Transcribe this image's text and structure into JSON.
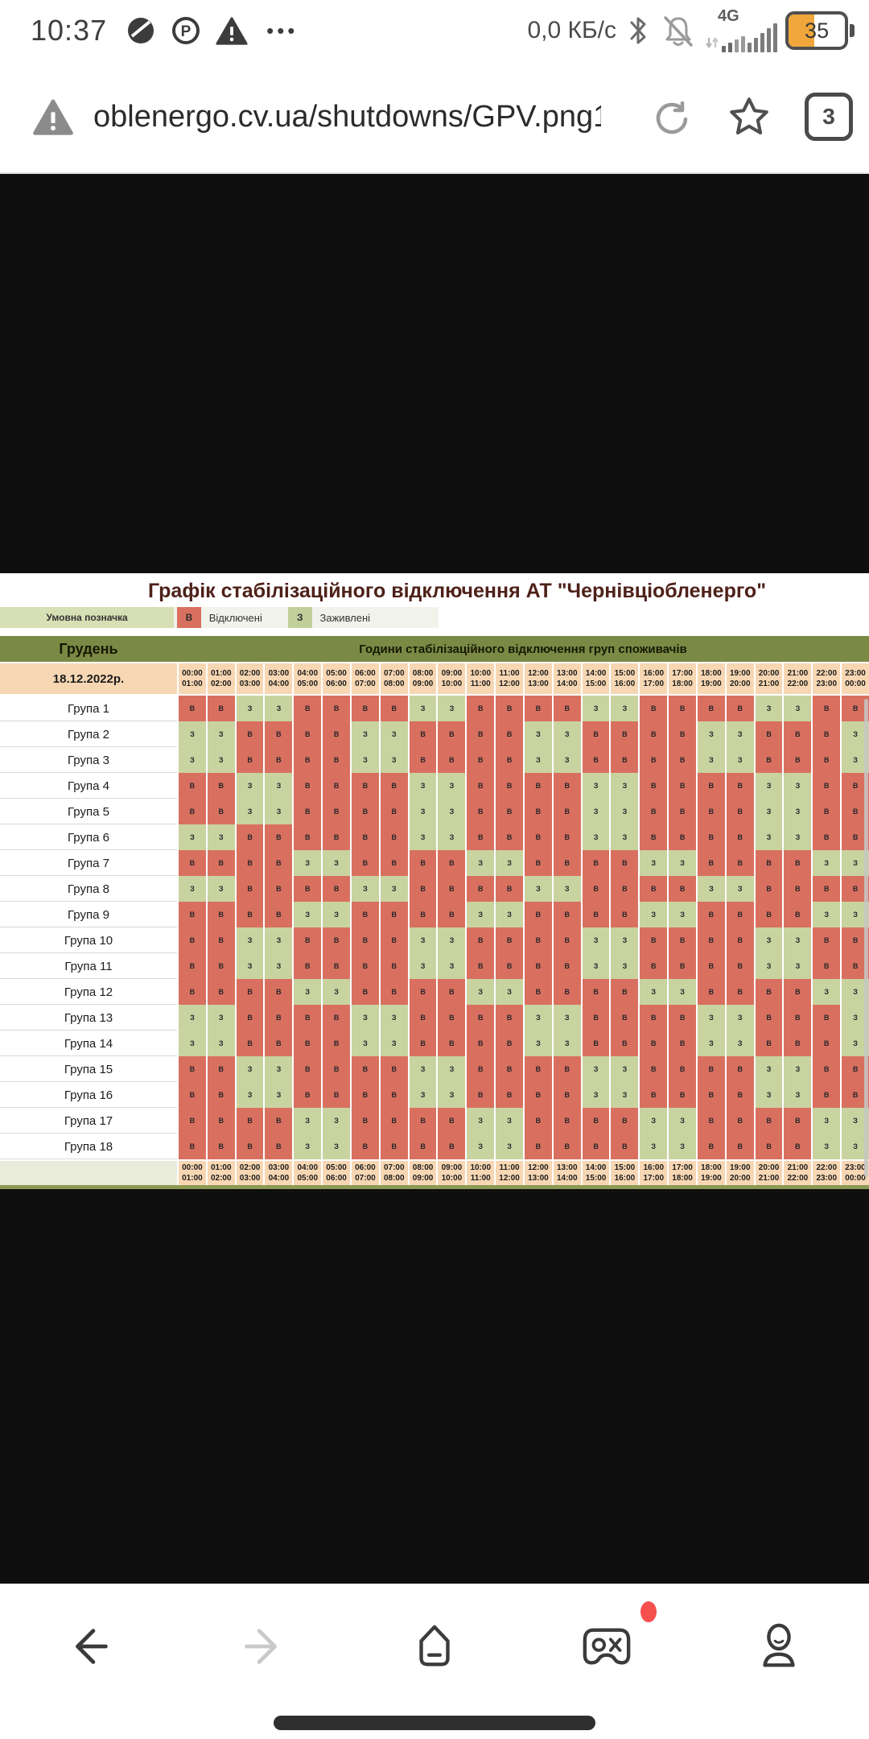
{
  "status_bar": {
    "time": "10:37",
    "more_glyph": "•••",
    "net_speed": "0,0 КБ/с",
    "network_type": "4G",
    "battery_percent": "35"
  },
  "url_bar": {
    "url": "oblenergo.cv.ua/shutdowns/GPV.png",
    "overflow": "1",
    "tab_count": "3"
  },
  "schedule": {
    "title": "Графік стабілізаційного відключення АТ \"Чернівціобленерго\"",
    "legend": {
      "label": "Умовна позначка",
      "off_symbol": "В",
      "off_label": "Відключені",
      "on_symbol": "З",
      "on_label": "Заживлені"
    },
    "month": "Грудень",
    "header": "Години стабілізаційного відключення груп споживачів",
    "date": "18.12.2022р.",
    "time_slots": [
      [
        "00:00",
        "01:00"
      ],
      [
        "01:00",
        "02:00"
      ],
      [
        "02:00",
        "03:00"
      ],
      [
        "03:00",
        "04:00"
      ],
      [
        "04:00",
        "05:00"
      ],
      [
        "05:00",
        "06:00"
      ],
      [
        "06:00",
        "07:00"
      ],
      [
        "07:00",
        "08:00"
      ],
      [
        "08:00",
        "09:00"
      ],
      [
        "09:00",
        "10:00"
      ],
      [
        "10:00",
        "11:00"
      ],
      [
        "11:00",
        "12:00"
      ],
      [
        "12:00",
        "13:00"
      ],
      [
        "13:00",
        "14:00"
      ],
      [
        "14:00",
        "15:00"
      ],
      [
        "15:00",
        "16:00"
      ],
      [
        "16:00",
        "17:00"
      ],
      [
        "17:00",
        "18:00"
      ],
      [
        "18:00",
        "19:00"
      ],
      [
        "19:00",
        "20:00"
      ],
      [
        "20:00",
        "21:00"
      ],
      [
        "21:00",
        "22:00"
      ],
      [
        "22:00",
        "23:00"
      ],
      [
        "23:00",
        "00:00"
      ]
    ],
    "groups": [
      {
        "name": "Група 1",
        "hours": "ВВЗЗВВВВЗЗВВВВЗЗВВВВЗЗВВ"
      },
      {
        "name": "Група 2",
        "hours": "ЗЗВВВВЗЗВВВВЗЗВВВВЗЗВВВЗ"
      },
      {
        "name": "Група 3",
        "hours": "ЗЗВВВВЗЗВВВВЗЗВВВВЗЗВВВЗ"
      },
      {
        "name": "Група 4",
        "hours": "ВВЗЗВВВВЗЗВВВВЗЗВВВВЗЗВВ"
      },
      {
        "name": "Група 5",
        "hours": "ВВЗЗВВВВЗЗВВВВЗЗВВВВЗЗВВ"
      },
      {
        "name": "Група 6",
        "hours": "ЗЗВВВВВВЗЗВВВВЗЗВВВВЗЗВВ"
      },
      {
        "name": "Група 7",
        "hours": "ВВВВЗЗВВВВЗЗВВВВЗЗВВВВЗЗ"
      },
      {
        "name": "Група 8",
        "hours": "ЗЗВВВВЗЗВВВВЗЗВВВВЗЗВВВВ"
      },
      {
        "name": "Група 9",
        "hours": "ВВВВЗЗВВВВЗЗВВВВЗЗВВВВЗЗ"
      },
      {
        "name": "Група 10",
        "hours": "ВВЗЗВВВВЗЗВВВВЗЗВВВВЗЗВВ"
      },
      {
        "name": "Група 11",
        "hours": "ВВЗЗВВВВЗЗВВВВЗЗВВВВЗЗВВ"
      },
      {
        "name": "Група 12",
        "hours": "ВВВВЗЗВВВВЗЗВВВВЗЗВВВВЗЗ"
      },
      {
        "name": "Група 13",
        "hours": "ЗЗВВВВЗЗВВВВЗЗВВВВЗЗВВВЗ"
      },
      {
        "name": "Група 14",
        "hours": "ЗЗВВВВЗЗВВВВЗЗВВВВЗЗВВВЗ"
      },
      {
        "name": "Група 15",
        "hours": "ВВЗЗВВВВЗЗВВВВЗЗВВВВЗЗВВ"
      },
      {
        "name": "Група 16",
        "hours": "ВВЗЗВВВВЗЗВВВВЗЗВВВВЗЗВВ"
      },
      {
        "name": "Група 17",
        "hours": "ВВВВЗЗВВВВЗЗВВВВЗЗВВВВЗЗ"
      },
      {
        "name": "Група 18",
        "hours": "ВВВВЗЗВВВВЗЗВВВВЗЗВВВВЗЗ"
      }
    ],
    "colors": {
      "off": "#d9705f",
      "on": "#c8d3a0",
      "header": "#7a8a45",
      "date_bg": "#f7d7b3",
      "legend_bg": "#d7dfb4",
      "title": "#4e2119"
    }
  }
}
